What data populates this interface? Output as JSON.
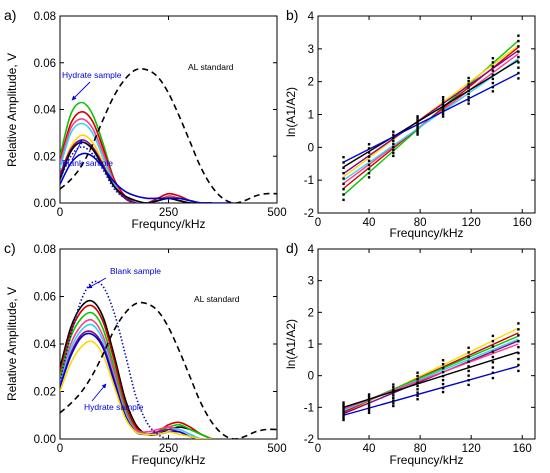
{
  "chart_data": [
    {
      "panel": "a)",
      "type": "line",
      "xlabel": "Frequncy/kHz",
      "ylabel": "Relative Amplitude, V",
      "xlim": [
        0,
        500
      ],
      "ylim": [
        0,
        0.08
      ],
      "xticks": [
        0,
        250,
        500
      ],
      "yticks": [
        "0.00",
        "0.02",
        "0.04",
        "0.06",
        "0.08"
      ],
      "annotations": [
        "Hydrate sample",
        "Blank sample",
        "AL standard"
      ],
      "series": [
        {
          "color": "#00c800",
          "style": "solid",
          "x": [
            0,
            25,
            50,
            75,
            100,
            125,
            150,
            175,
            200,
            225,
            250,
            275,
            300,
            325,
            350
          ],
          "y": [
            0.02,
            0.038,
            0.043,
            0.038,
            0.025,
            0.01,
            0.002,
            0.0,
            0.0,
            0.001,
            0.0025,
            0.002,
            0.001,
            0.0,
            0.0
          ]
        },
        {
          "color": "#d40000",
          "style": "solid",
          "x": [
            0,
            25,
            50,
            75,
            100,
            125,
            150,
            175,
            200,
            225,
            250,
            275,
            300,
            325,
            350
          ],
          "y": [
            0.018,
            0.034,
            0.039,
            0.035,
            0.023,
            0.01,
            0.003,
            0.0,
            0.0,
            0.002,
            0.004,
            0.003,
            0.001,
            0.0,
            0.0
          ]
        },
        {
          "color": "#ff3c8c",
          "style": "solid",
          "x": [
            0,
            25,
            50,
            75,
            100,
            125,
            150,
            175,
            200,
            225,
            250,
            275,
            300,
            325,
            350
          ],
          "y": [
            0.017,
            0.032,
            0.036,
            0.032,
            0.021,
            0.009,
            0.002,
            0.0,
            0.0,
            0.001,
            0.003,
            0.002,
            0.001,
            0.0,
            0.0
          ]
        },
        {
          "color": "#32d4f0",
          "style": "solid",
          "x": [
            0,
            25,
            50,
            75,
            100,
            125,
            150,
            175,
            200,
            225,
            250,
            275,
            300,
            325,
            350
          ],
          "y": [
            0.015,
            0.03,
            0.034,
            0.03,
            0.019,
            0.008,
            0.002,
            0.0,
            0.0,
            0.001,
            0.002,
            0.002,
            0.001,
            0.0,
            0.0
          ]
        },
        {
          "color": "#ffd800",
          "style": "solid",
          "x": [
            0,
            25,
            50,
            75,
            100,
            125,
            150,
            175,
            200,
            225,
            250,
            275,
            300,
            325,
            350
          ],
          "y": [
            0.012,
            0.024,
            0.029,
            0.026,
            0.017,
            0.007,
            0.002,
            0.0,
            0.0,
            0.001,
            0.002,
            0.001,
            0.0,
            0.0,
            0.0
          ]
        },
        {
          "color": "#8b008b",
          "style": "solid",
          "x": [
            0,
            25,
            50,
            75,
            100,
            125,
            150,
            175,
            200,
            225,
            250,
            275,
            300,
            325,
            350
          ],
          "y": [
            0.012,
            0.023,
            0.027,
            0.024,
            0.016,
            0.007,
            0.002,
            0.0,
            0.0,
            0.001,
            0.002,
            0.001,
            0.0,
            0.0,
            0.0
          ]
        },
        {
          "color": "#000000",
          "style": "solid",
          "x": [
            0,
            25,
            50,
            75,
            100,
            125,
            150,
            175,
            200,
            225,
            250,
            275,
            300,
            325,
            350
          ],
          "y": [
            0.01,
            0.022,
            0.026,
            0.023,
            0.015,
            0.007,
            0.003,
            0.001,
            0.0,
            0.001,
            0.002,
            0.001,
            0.0,
            0.0,
            0.0
          ]
        },
        {
          "color": "#0000d0",
          "style": "solid",
          "x": [
            0,
            25,
            50,
            75,
            100,
            125,
            150,
            175,
            200,
            225,
            250,
            275,
            300,
            325,
            350,
            375,
            400
          ],
          "y": [
            0.008,
            0.017,
            0.021,
            0.02,
            0.015,
            0.009,
            0.005,
            0.003,
            0.002,
            0.002,
            0.002,
            0.002,
            0.001,
            0.0,
            0.0,
            0.0,
            0.0
          ]
        },
        {
          "color": "#1010b0",
          "style": "dotted",
          "x": [
            0,
            25,
            50,
            75,
            100,
            125,
            150,
            175,
            200,
            225,
            250
          ],
          "y": [
            0.01,
            0.02,
            0.024,
            0.021,
            0.014,
            0.006,
            0.002,
            0.0,
            0.0,
            0.0,
            0.0
          ]
        },
        {
          "color": "#000000",
          "style": "dashed",
          "x": [
            0,
            25,
            50,
            75,
            100,
            125,
            150,
            175,
            200,
            225,
            250,
            275,
            300,
            325,
            350,
            375,
            400,
            425,
            450,
            475,
            500
          ],
          "y": [
            0.006,
            0.01,
            0.016,
            0.025,
            0.036,
            0.046,
            0.053,
            0.057,
            0.057,
            0.054,
            0.047,
            0.037,
            0.026,
            0.015,
            0.007,
            0.002,
            0.0,
            0.001,
            0.003,
            0.004,
            0.004
          ]
        }
      ]
    },
    {
      "panel": "b)",
      "type": "scatter",
      "xlabel": "Frequncy/kHz",
      "ylabel": "ln(A1/A2)",
      "xlim": [
        0,
        170
      ],
      "ylim": [
        -2,
        4
      ],
      "xticks": [
        0,
        40,
        80,
        120,
        160
      ],
      "yticks": [
        -2,
        -1,
        0,
        1,
        2,
        3,
        4
      ],
      "point_x": [
        20,
        40,
        59,
        78,
        98,
        118,
        137,
        157
      ],
      "point_spread": [
        -0.85,
        -0.65,
        -0.45,
        -0.25,
        0.0,
        0.3,
        0.7
      ],
      "series": [
        {
          "color": "#00c800",
          "x": [
            20,
            157
          ],
          "y": [
            -1.45,
            3.25
          ]
        },
        {
          "color": "#d40000",
          "x": [
            20,
            157
          ],
          "y": [
            -1.25,
            3.05
          ]
        },
        {
          "color": "#ff3c8c",
          "x": [
            20,
            157
          ],
          "y": [
            -1.1,
            2.85
          ]
        },
        {
          "color": "#32d4f0",
          "x": [
            20,
            157
          ],
          "y": [
            -1.0,
            2.7
          ]
        },
        {
          "color": "#ffd800",
          "x": [
            20,
            157
          ],
          "y": [
            -0.9,
            3.1
          ]
        },
        {
          "color": "#8b008b",
          "x": [
            20,
            157
          ],
          "y": [
            -0.8,
            2.95
          ]
        },
        {
          "color": "#000000",
          "x": [
            20,
            157
          ],
          "y": [
            -0.6,
            2.65
          ]
        },
        {
          "color": "#0000d0",
          "x": [
            20,
            157
          ],
          "y": [
            -0.45,
            2.25
          ]
        }
      ]
    },
    {
      "panel": "c)",
      "type": "line",
      "xlabel": "Frequncy/kHz",
      "ylabel": "Relative Amplitude, V",
      "xlim": [
        0,
        500
      ],
      "ylim": [
        0,
        0.08
      ],
      "xticks": [
        0,
        250,
        500
      ],
      "yticks": [
        "0.00",
        "0.02",
        "0.04",
        "0.06",
        "0.08"
      ],
      "annotations": [
        "Blank sample",
        "Hydrate sample",
        "AL standard"
      ],
      "series": [
        {
          "color": "#000000",
          "style": "solid",
          "x": [
            0,
            25,
            50,
            75,
            100,
            125,
            150,
            175,
            200,
            225,
            250,
            275,
            300,
            325,
            350
          ],
          "y": [
            0.03,
            0.047,
            0.056,
            0.058,
            0.051,
            0.035,
            0.017,
            0.006,
            0.002,
            0.002,
            0.004,
            0.005,
            0.004,
            0.002,
            0.0
          ]
        },
        {
          "color": "#d40000",
          "style": "solid",
          "x": [
            0,
            25,
            50,
            75,
            100,
            125,
            150,
            175,
            200,
            225,
            250,
            275,
            300,
            325,
            350
          ],
          "y": [
            0.028,
            0.045,
            0.054,
            0.056,
            0.049,
            0.033,
            0.015,
            0.005,
            0.002,
            0.003,
            0.006,
            0.007,
            0.005,
            0.002,
            0.0
          ]
        },
        {
          "color": "#00c800",
          "style": "solid",
          "x": [
            0,
            25,
            50,
            75,
            100,
            125,
            150,
            175,
            200,
            225,
            250,
            275,
            300,
            325,
            350
          ],
          "y": [
            0.026,
            0.043,
            0.051,
            0.053,
            0.046,
            0.03,
            0.013,
            0.004,
            0.002,
            0.003,
            0.005,
            0.006,
            0.004,
            0.002,
            0.0
          ]
        },
        {
          "color": "#ff3c8c",
          "style": "solid",
          "x": [
            0,
            25,
            50,
            75,
            100,
            125,
            150,
            175,
            200,
            225,
            250,
            275,
            300,
            325,
            350
          ],
          "y": [
            0.024,
            0.04,
            0.048,
            0.05,
            0.043,
            0.028,
            0.012,
            0.004,
            0.003,
            0.004,
            0.005,
            0.004,
            0.002,
            0.0,
            0.0
          ]
        },
        {
          "color": "#32d4f0",
          "style": "solid",
          "x": [
            0,
            25,
            50,
            75,
            100,
            125,
            150,
            175,
            200,
            225,
            250,
            275,
            300,
            325,
            350
          ],
          "y": [
            0.023,
            0.038,
            0.046,
            0.048,
            0.041,
            0.026,
            0.011,
            0.003,
            0.002,
            0.003,
            0.004,
            0.004,
            0.002,
            0.0,
            0.0
          ]
        },
        {
          "color": "#8b008b",
          "style": "solid",
          "x": [
            0,
            25,
            50,
            75,
            100,
            125,
            150,
            175,
            200,
            225,
            250,
            275,
            300,
            325,
            350
          ],
          "y": [
            0.022,
            0.036,
            0.044,
            0.045,
            0.039,
            0.025,
            0.01,
            0.003,
            0.002,
            0.003,
            0.004,
            0.003,
            0.001,
            0.0,
            0.0
          ]
        },
        {
          "color": "#0000d0",
          "style": "solid",
          "x": [
            0,
            25,
            50,
            75,
            100,
            125,
            150,
            175,
            200,
            225,
            250,
            275,
            300,
            325,
            350
          ],
          "y": [
            0.022,
            0.035,
            0.043,
            0.044,
            0.038,
            0.024,
            0.01,
            0.003,
            0.002,
            0.002,
            0.003,
            0.003,
            0.001,
            0.0,
            0.0
          ]
        },
        {
          "color": "#ffd800",
          "style": "solid",
          "x": [
            0,
            25,
            50,
            75,
            100,
            125,
            150,
            175,
            200,
            225,
            250,
            275,
            300,
            325,
            350
          ],
          "y": [
            0.02,
            0.032,
            0.039,
            0.041,
            0.035,
            0.022,
            0.009,
            0.003,
            0.002,
            0.002,
            0.003,
            0.002,
            0.001,
            0.0,
            0.0
          ]
        },
        {
          "color": "#1010b0",
          "style": "dotted",
          "x": [
            0,
            25,
            50,
            75,
            100,
            125,
            150,
            175,
            200,
            225,
            250,
            275,
            300
          ],
          "y": [
            0.024,
            0.044,
            0.059,
            0.066,
            0.064,
            0.053,
            0.036,
            0.018,
            0.007,
            0.002,
            0.0,
            0.0,
            0.0
          ]
        },
        {
          "color": "#000000",
          "style": "dashed",
          "x": [
            0,
            25,
            50,
            75,
            100,
            125,
            150,
            175,
            200,
            225,
            250,
            275,
            300,
            325,
            350,
            375,
            400,
            425,
            450,
            475,
            500
          ],
          "y": [
            0.011,
            0.015,
            0.02,
            0.027,
            0.036,
            0.046,
            0.053,
            0.057,
            0.057,
            0.054,
            0.047,
            0.037,
            0.026,
            0.015,
            0.007,
            0.002,
            0.0,
            0.001,
            0.003,
            0.004,
            0.004
          ]
        }
      ]
    },
    {
      "panel": "d)",
      "type": "scatter",
      "xlabel": "Frequncy/kHz",
      "ylabel": "ln(A1/A2)",
      "xlim": [
        0,
        170
      ],
      "ylim": [
        -2,
        4
      ],
      "xticks": [
        0,
        40,
        80,
        120,
        160
      ],
      "yticks": [
        -2,
        -1,
        0,
        1,
        2,
        3,
        4
      ],
      "point_x": [
        20,
        40,
        59,
        78,
        98,
        118,
        137,
        157
      ],
      "point_spread": [
        -0.6,
        -0.4,
        -0.2,
        0.0,
        0.2,
        0.4,
        0.6
      ],
      "series": [
        {
          "color": "#ffd800",
          "x": [
            20,
            157
          ],
          "y": [
            -1.2,
            1.5
          ]
        },
        {
          "color": "#d40000",
          "x": [
            20,
            157
          ],
          "y": [
            -1.15,
            1.35
          ]
        },
        {
          "color": "#00c800",
          "x": [
            20,
            157
          ],
          "y": [
            -1.1,
            1.25
          ]
        },
        {
          "color": "#32d4f0",
          "x": [
            20,
            157
          ],
          "y": [
            -1.1,
            1.15
          ]
        },
        {
          "color": "#8b008b",
          "x": [
            20,
            157
          ],
          "y": [
            -1.2,
            1.1
          ]
        },
        {
          "color": "#ff3c8c",
          "x": [
            20,
            157
          ],
          "y": [
            -1.05,
            1.0
          ]
        },
        {
          "color": "#000000",
          "x": [
            20,
            157
          ],
          "y": [
            -1.0,
            0.75
          ]
        },
        {
          "color": "#0000d0",
          "x": [
            20,
            157
          ],
          "y": [
            -1.25,
            0.3
          ]
        }
      ]
    }
  ]
}
